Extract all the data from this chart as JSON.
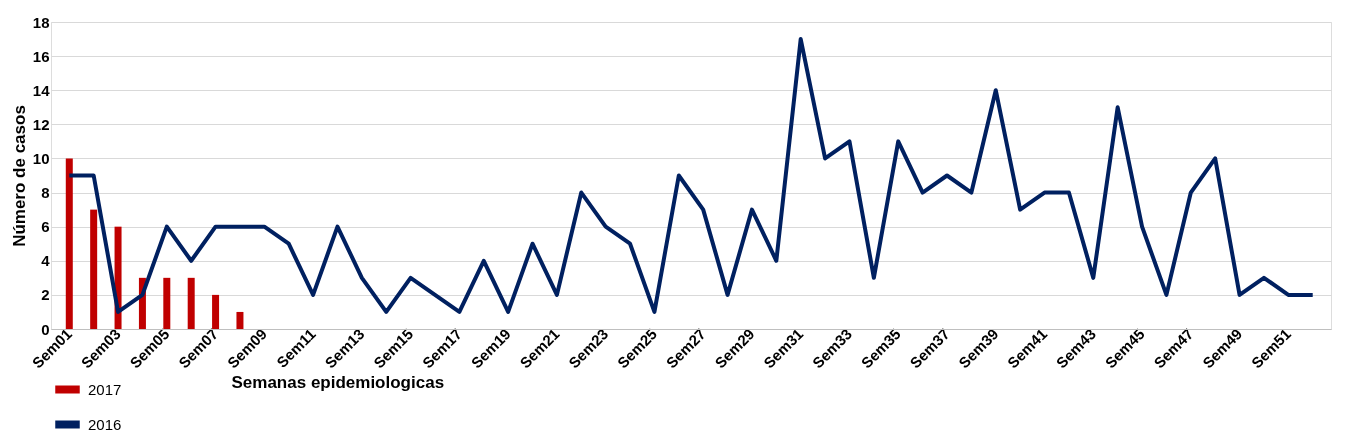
{
  "chart_data": {
    "type": "bar",
    "xlabel": "Semanas epidemiologicas",
    "ylabel": "Número de casos",
    "categories": [
      "Sem01",
      null,
      "Sem03",
      null,
      "Sem05",
      null,
      "Sem07",
      null,
      "Sem09",
      null,
      "Sem11",
      null,
      "Sem13",
      null,
      "Sem15",
      null,
      "Sem17",
      null,
      "Sem19",
      null,
      "Sem21",
      null,
      "Sem23",
      null,
      "Sem25",
      null,
      "Sem27",
      null,
      "Sem29",
      null,
      "Sem31",
      null,
      "Sem33",
      null,
      "Sem35",
      null,
      "Sem37",
      null,
      "Sem39",
      null,
      "Sem41",
      null,
      "Sem43",
      null,
      "Sem45",
      null,
      "Sem47",
      null,
      "Sem49",
      null,
      "Sem51",
      null
    ],
    "series": [
      {
        "name": "2017",
        "color": "#c00000",
        "values": [
          10,
          7,
          6,
          3,
          3,
          3,
          2,
          1,
          null,
          null,
          null,
          null,
          null,
          null,
          null,
          null,
          null,
          null,
          null,
          null,
          null,
          null,
          null,
          null,
          null,
          null,
          null,
          null,
          null,
          null,
          null,
          null,
          null,
          null,
          null,
          null,
          null,
          null,
          null,
          null,
          null,
          null,
          null,
          null,
          null,
          null,
          null,
          null,
          null,
          null,
          null,
          null
        ]
      },
      {
        "name": "2016",
        "type": "line",
        "color": "#002060",
        "values": [
          9,
          9,
          1,
          2,
          6,
          4,
          6,
          6,
          6,
          5,
          2,
          6,
          3,
          1,
          3,
          2,
          1,
          4,
          1,
          5,
          2,
          8,
          6,
          5,
          1,
          9,
          7,
          2,
          7,
          4,
          17,
          10,
          11,
          3,
          11,
          8,
          9,
          8,
          14,
          7,
          8,
          8,
          3,
          13,
          6,
          2,
          8,
          10,
          2,
          3,
          2,
          2
        ]
      }
    ],
    "ylim": [
      0,
      18
    ],
    "yticks": [
      0,
      2,
      4,
      6,
      8,
      10,
      12,
      14,
      16,
      18
    ],
    "grid": "y",
    "legend": "bottom",
    "marker": "none",
    "line_style": "solid"
  }
}
